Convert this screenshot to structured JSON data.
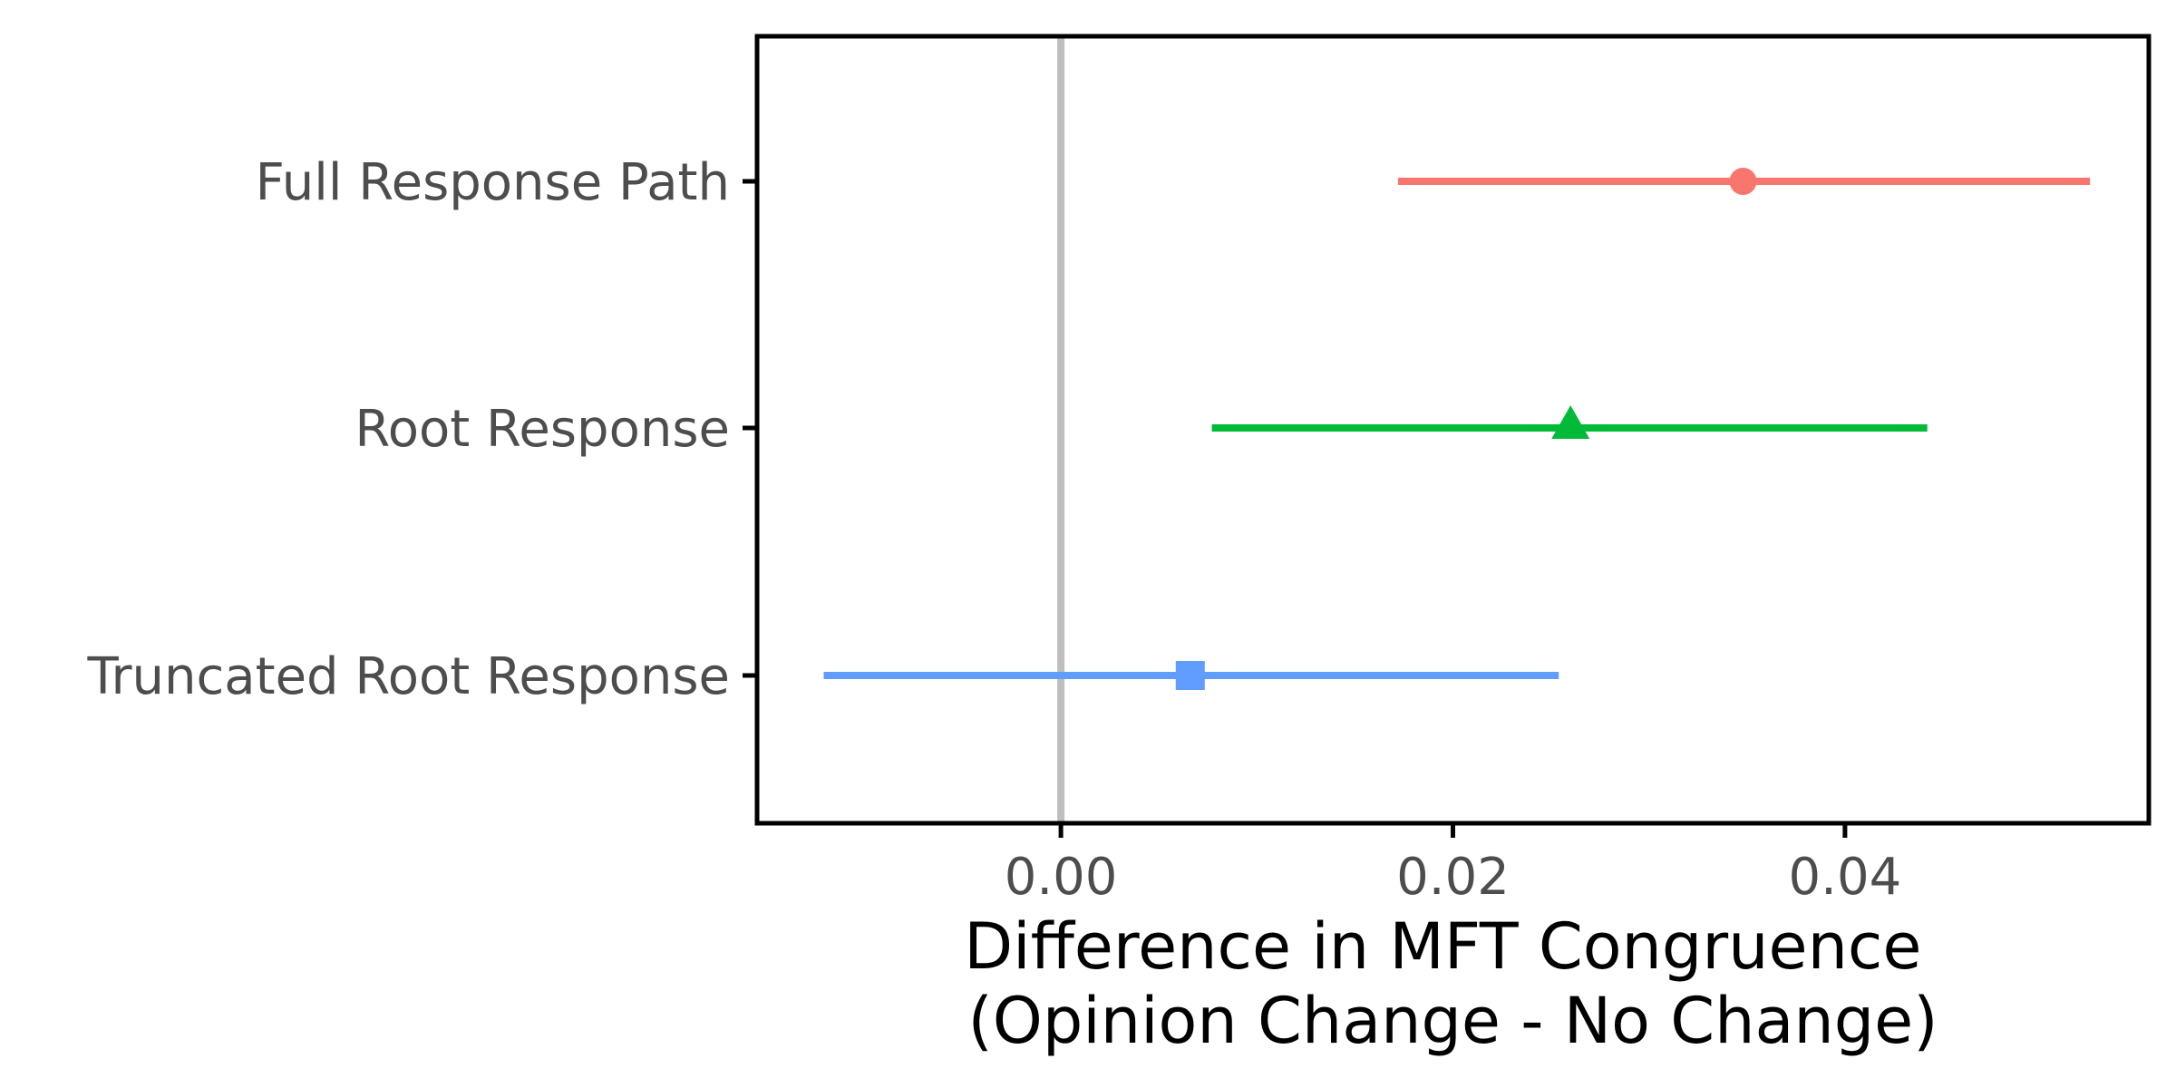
{
  "chart_data": {
    "type": "scatter",
    "title": "",
    "xlabel_lines": [
      "Difference in MFT Congruence",
      "(Opinion Change - No Change)"
    ],
    "ylabel": "",
    "xlim": [
      -0.0155,
      0.0555
    ],
    "x_ticks": [
      0.0,
      0.02,
      0.04
    ],
    "x_tick_labels": [
      "0.00",
      "0.02",
      "0.04"
    ],
    "reference_line_x": 0,
    "grid": false,
    "legend": "none",
    "series": [
      {
        "category": "Full Response Path",
        "estimate": 0.0348,
        "lower": 0.0172,
        "upper": 0.0525,
        "color": "#F8766D",
        "marker": "circle"
      },
      {
        "category": "Root Response",
        "estimate": 0.026,
        "lower": 0.0077,
        "upper": 0.0442,
        "color": "#00BA38",
        "marker": "triangle"
      },
      {
        "category": "Truncated Root Response",
        "estimate": 0.0066,
        "lower": -0.0121,
        "upper": 0.0254,
        "color": "#619CFF",
        "marker": "square"
      }
    ]
  }
}
